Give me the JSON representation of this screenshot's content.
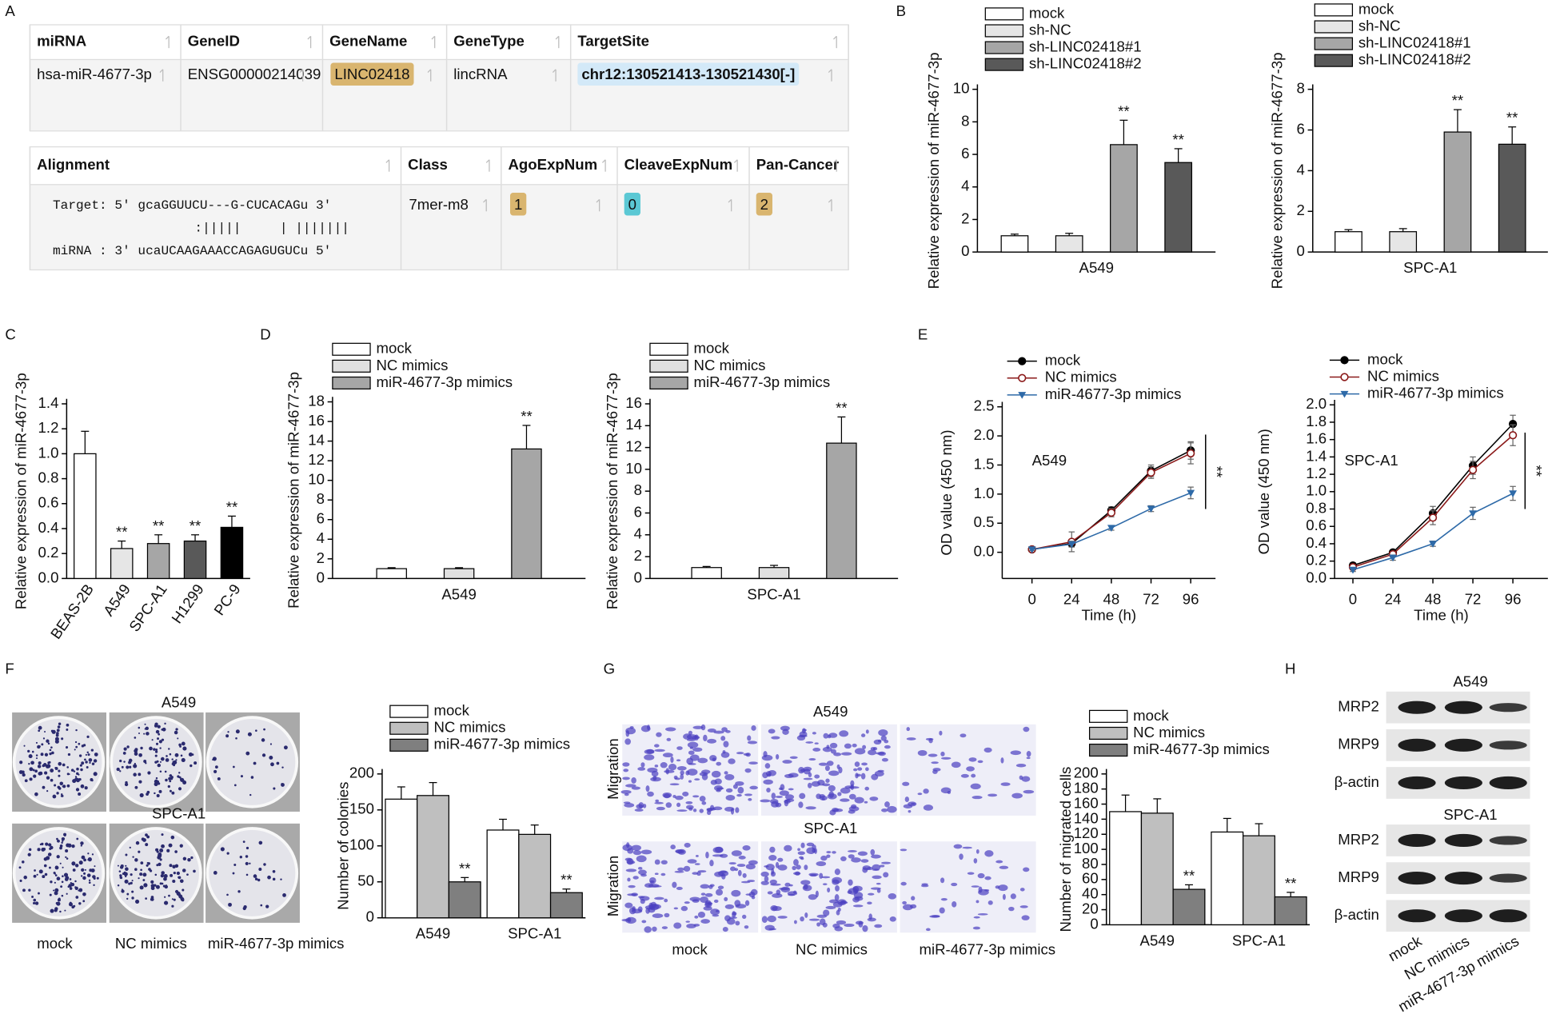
{
  "panel_labels": [
    "A",
    "B",
    "C",
    "D",
    "E",
    "F",
    "G",
    "H"
  ],
  "panel_a": {
    "table1": {
      "headers": [
        "miRNA",
        "GeneID",
        "GeneName",
        "GeneType",
        "TargetSite"
      ],
      "rows": [
        [
          "hsa-miR-4677-3p",
          "ENSG00000214039",
          "LINC02418",
          "lincRNA",
          "chr12:130521413-130521430[-]"
        ]
      ]
    },
    "table2": {
      "headers": [
        "Alignment",
        "Class",
        "AgoExpNum",
        "CleaveExpNum",
        "Pan-Cancer"
      ],
      "rows": [
        [
          [
            "Target: 5' gcaGGUUCU---G-CUCACAGu 3'",
            ":|||||     | |||||||",
            "miRNA : 3' ucaUCAAGAAACCAGAGUGUCu 5'"
          ],
          "7mer-m8",
          "1",
          "0",
          "2"
        ]
      ]
    }
  },
  "chart_data": [
    {
      "type": "bar",
      "categories": [
        "A549"
      ],
      "ylabel": "Relative expression of miR-4677-3p",
      "ylim": [
        0,
        10
      ],
      "yticks": [
        0,
        2,
        4,
        6,
        8,
        10
      ],
      "series": [
        {
          "name": "mock",
          "color": "#ffffff",
          "values": [
            1
          ],
          "errors": [
            0.1
          ]
        },
        {
          "name": "sh-NC",
          "color": "#e6e6e6",
          "values": [
            1
          ],
          "errors": [
            0.15
          ]
        },
        {
          "name": "sh-LINC02418#1",
          "color": "#a6a6a6",
          "values": [
            6.6
          ],
          "errors": [
            1.5
          ],
          "significance": [
            "**"
          ]
        },
        {
          "name": "sh-LINC02418#2",
          "color": "#595959",
          "values": [
            5.5
          ],
          "errors": [
            0.85
          ],
          "significance": [
            "**"
          ]
        }
      ]
    },
    {
      "type": "bar",
      "categories": [
        "SPC-A1"
      ],
      "ylabel": "Relative expression of miR-4677-3p",
      "ylim": [
        0,
        8
      ],
      "yticks": [
        0,
        2,
        4,
        6,
        8
      ],
      "series": [
        {
          "name": "mock",
          "color": "#ffffff",
          "values": [
            1
          ],
          "errors": [
            0.1
          ]
        },
        {
          "name": "sh-NC",
          "color": "#e6e6e6",
          "values": [
            1
          ],
          "errors": [
            0.15
          ]
        },
        {
          "name": "sh-LINC02418#1",
          "color": "#a6a6a6",
          "values": [
            5.9
          ],
          "errors": [
            1.1
          ],
          "significance": [
            "**"
          ]
        },
        {
          "name": "sh-LINC02418#2",
          "color": "#595959",
          "values": [
            5.3
          ],
          "errors": [
            0.85
          ],
          "significance": [
            "**"
          ]
        }
      ]
    },
    {
      "type": "bar",
      "categories": [
        "BEAS-2B",
        "A549",
        "SPC-A1",
        "H1299",
        "PC-9"
      ],
      "ylabel": "Relative expression of miR-4677-3p",
      "ylim": [
        0,
        1.4
      ],
      "yticks": [
        {
          "value": 0,
          "label": "0.0"
        },
        0.2,
        0.4,
        0.6,
        0.8,
        {
          "value": 1,
          "label": "1.0"
        },
        1.2,
        1.4
      ],
      "values": [
        1,
        0.24,
        0.28,
        0.3,
        0.41
      ],
      "errors": [
        0.18,
        0.06,
        0.07,
        0.05,
        0.09
      ],
      "colors": [
        "#ffffff",
        "#e6e6e6",
        "#a6a6a6",
        "#595959",
        "#000000"
      ],
      "significance": [
        null,
        "**",
        "**",
        "**",
        "**"
      ]
    },
    {
      "type": "bar",
      "categories": [
        "A549"
      ],
      "ylabel": "Relative expression of miR-4677-3p",
      "ylim": [
        0,
        18
      ],
      "yticks": [
        0,
        2,
        4,
        6,
        8,
        10,
        12,
        14,
        16,
        18
      ],
      "series": [
        {
          "name": "mock",
          "color": "#ffffff",
          "values": [
            1
          ],
          "errors": [
            0.1
          ]
        },
        {
          "name": "NC mimics",
          "color": "#e0e0e0",
          "values": [
            1
          ],
          "errors": [
            0.1
          ]
        },
        {
          "name": "miR-4677-3p mimics",
          "color": "#a6a6a6",
          "values": [
            13.2
          ],
          "errors": [
            2.4
          ],
          "significance": [
            "**"
          ]
        }
      ]
    },
    {
      "type": "bar",
      "categories": [
        "SPC-A1"
      ],
      "ylabel": "Relative expression of miR-4677-3p",
      "ylim": [
        0,
        16
      ],
      "yticks": [
        0,
        2,
        4,
        6,
        8,
        10,
        12,
        14,
        16
      ],
      "series": [
        {
          "name": "mock",
          "color": "#ffffff",
          "values": [
            1
          ],
          "errors": [
            0.1
          ]
        },
        {
          "name": "NC mimics",
          "color": "#e0e0e0",
          "values": [
            1
          ],
          "errors": [
            0.2
          ]
        },
        {
          "name": "miR-4677-3p mimics",
          "color": "#a6a6a6",
          "values": [
            12.4
          ],
          "errors": [
            2.4
          ],
          "significance": [
            "**"
          ]
        }
      ]
    },
    {
      "type": "line",
      "label": "A549",
      "significance": "**",
      "xlabel": "Time (h)",
      "ylabel": "OD value (450 nm)",
      "x": [
        0,
        24,
        48,
        72,
        96
      ],
      "xlim": [
        -18,
        111
      ],
      "xticks": [
        0,
        24,
        48,
        72,
        96
      ],
      "ylim": [
        -0.45,
        2.5
      ],
      "yticks": [
        {
          "value": 0,
          "label": "0.0"
        },
        0.5,
        {
          "value": 1,
          "label": "1.0"
        },
        1.5,
        {
          "value": 2,
          "label": "2.0"
        },
        2.5
      ],
      "series": [
        {
          "name": "mock",
          "color": "#000000",
          "marker": "circle",
          "values": [
            0.05,
            0.15,
            0.72,
            1.4,
            1.75
          ],
          "errors": [
            0.02,
            0.05,
            0.06,
            0.1,
            0.15
          ]
        },
        {
          "name": "NC mimics",
          "color": "#8b1a1a",
          "marker": "circle-open",
          "values": [
            0.05,
            0.18,
            0.68,
            1.37,
            1.7
          ],
          "errors": [
            0.02,
            0.17,
            0.07,
            0.1,
            0.18
          ]
        },
        {
          "name": "miR-4677-3p mimics",
          "color": "#2e6aa8",
          "marker": "triangle-down",
          "values": [
            0.05,
            0.14,
            0.42,
            0.75,
            1.02
          ],
          "errors": [
            0.02,
            0.05,
            0.04,
            0.05,
            0.1
          ]
        }
      ]
    },
    {
      "type": "line",
      "label": "SPC-A1",
      "significance": "**",
      "xlabel": "Time (h)",
      "ylabel": "OD value (450 nm)",
      "x": [
        0,
        24,
        48,
        72,
        96
      ],
      "xlim": [
        -11,
        117
      ],
      "xticks": [
        0,
        24,
        48,
        72,
        96
      ],
      "ylim": [
        0,
        2
      ],
      "yticks": [
        {
          "value": 0,
          "label": "0.0"
        },
        0.2,
        0.4,
        0.6,
        0.8,
        {
          "value": 1,
          "label": "1.0"
        },
        1.2,
        1.4,
        1.6,
        1.8,
        {
          "value": 2,
          "label": "2.0"
        }
      ],
      "series": [
        {
          "name": "mock",
          "color": "#000000",
          "marker": "circle",
          "values": [
            0.15,
            0.3,
            0.75,
            1.3,
            1.78
          ],
          "errors": [
            0.03,
            0.03,
            0.08,
            0.1,
            0.1
          ]
        },
        {
          "name": "NC mimics",
          "color": "#8b1a1a",
          "marker": "circle-open",
          "values": [
            0.13,
            0.28,
            0.7,
            1.25,
            1.65
          ],
          "errors": [
            0.03,
            0.03,
            0.08,
            0.1,
            0.12
          ]
        },
        {
          "name": "miR-4677-3p mimics",
          "color": "#2e6aa8",
          "marker": "triangle-down",
          "values": [
            0.1,
            0.24,
            0.4,
            0.75,
            0.98
          ],
          "errors": [
            0.02,
            0.03,
            0.03,
            0.07,
            0.08
          ]
        }
      ]
    },
    {
      "type": "bar",
      "categories": [
        "A549",
        "SPC-A1"
      ],
      "ylabel": "Number of colonies",
      "ylim": [
        0,
        200
      ],
      "yticks": [
        0,
        50,
        100,
        150,
        200
      ],
      "series": [
        {
          "name": "mock",
          "color": "#ffffff",
          "values": [
            165,
            122
          ],
          "errors": [
            17,
            15
          ]
        },
        {
          "name": "NC mimics",
          "color": "#bfbfbf",
          "values": [
            170,
            116
          ],
          "errors": [
            18,
            13
          ]
        },
        {
          "name": "miR-4677-3p mimics",
          "color": "#7f7f7f",
          "values": [
            50,
            35
          ],
          "errors": [
            6,
            5
          ],
          "significance": [
            "**",
            "**"
          ]
        }
      ]
    },
    {
      "type": "bar",
      "categories": [
        "A549",
        "SPC-A1"
      ],
      "ylabel": "Number of migrated cells",
      "ylim": [
        0,
        200
      ],
      "yticks": [
        0,
        20,
        40,
        60,
        80,
        100,
        120,
        140,
        160,
        180,
        200
      ],
      "series": [
        {
          "name": "mock",
          "color": "#ffffff",
          "values": [
            150,
            123
          ],
          "errors": [
            22,
            18
          ]
        },
        {
          "name": "NC mimics",
          "color": "#bfbfbf",
          "values": [
            148,
            118
          ],
          "errors": [
            19,
            16
          ]
        },
        {
          "name": "miR-4677-3p mimics",
          "color": "#7f7f7f",
          "values": [
            47,
            37
          ],
          "errors": [
            6,
            6
          ],
          "significance": [
            "**",
            "**"
          ]
        }
      ]
    }
  ],
  "panel_f": {
    "rows": [
      "A549",
      "SPC-A1"
    ],
    "columns": [
      "mock",
      "NC mimics",
      "miR-4677-3p mimics"
    ]
  },
  "panel_g": {
    "rows": [
      "A549",
      "SPC-A1"
    ],
    "row_label": "Migration",
    "columns": [
      "mock",
      "NC mimics",
      "miR-4677-3p mimics"
    ]
  },
  "panel_h": {
    "cell_lines": [
      "A549",
      "SPC-A1"
    ],
    "proteins": [
      "MRP2",
      "MRP9",
      "β-actin"
    ],
    "lanes": [
      "mock",
      "NC mimics",
      "miR-4677-3p mimics"
    ]
  }
}
